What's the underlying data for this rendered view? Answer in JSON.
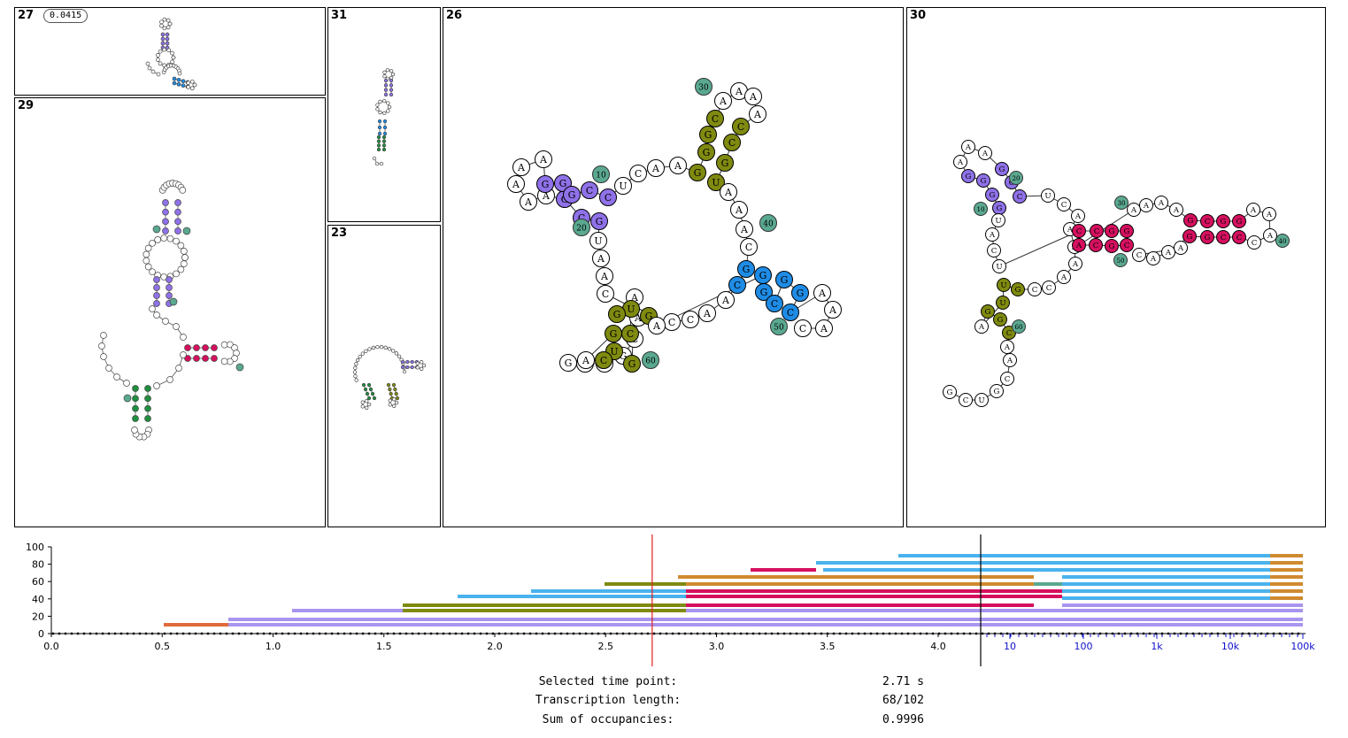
{
  "panels": [
    {
      "id": "27",
      "probability": "0.0415"
    },
    {
      "id": "31"
    },
    {
      "id": "26"
    },
    {
      "id": "30"
    },
    {
      "id": "29"
    },
    {
      "id": "23"
    }
  ],
  "structure26": {
    "index_labels": [
      "10",
      "20",
      "30",
      "40",
      "50",
      "60"
    ]
  },
  "structure30": {
    "index_labels": [
      "10",
      "20",
      "30",
      "40",
      "50",
      "60"
    ]
  },
  "colors": {
    "purple": "#8f71e8",
    "olive": "#7f8a10",
    "blue": "#1e8ce6",
    "teal": "#5aa890",
    "magenta": "#d5105f",
    "green": "#1f8f3f",
    "orange": "#e06a3a",
    "brown": "#d08a30",
    "sky": "#4ab2ee",
    "lightpurple": "#a994f0"
  },
  "timeline": {
    "y_ticks": [
      "0",
      "20",
      "40",
      "60",
      "80",
      "100"
    ],
    "x_ticks": [
      "0.0",
      "0.5",
      "1.0",
      "1.5",
      "2.0",
      "2.5",
      "3.0",
      "3.5",
      "4.0"
    ],
    "log_ticks": [
      "10",
      "100",
      "1k",
      "10k",
      "100k"
    ],
    "selected_time": 2.71
  },
  "info": {
    "selected_time_label": "Selected time point:",
    "selected_time_value": "2.71 s",
    "transcription_label": "Transcription length:",
    "transcription_value": "68/102",
    "occupancy_label": "Sum of occupancies:",
    "occupancy_value": "0.9996"
  }
}
